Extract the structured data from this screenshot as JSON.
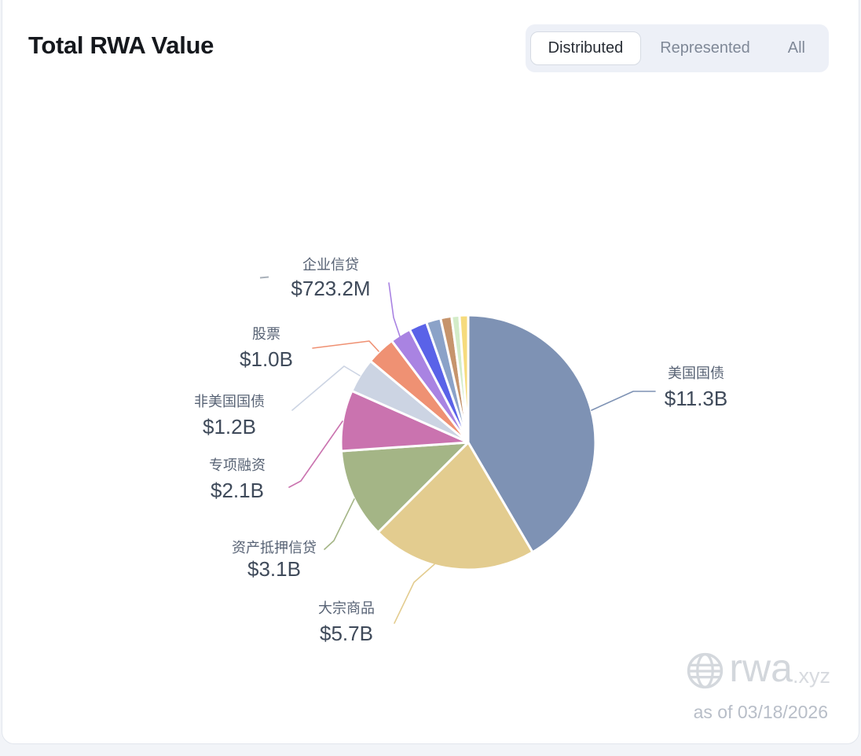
{
  "header": {
    "title": "Total RWA Value"
  },
  "tabs": {
    "items": [
      {
        "label": "Distributed",
        "active": true
      },
      {
        "label": "Represented",
        "active": false
      },
      {
        "label": "All",
        "active": false
      }
    ]
  },
  "chart_data": {
    "type": "pie",
    "title": "Total RWA Value",
    "legend_position": "none",
    "start_angle": "12-o-clock",
    "direction": "clockwise",
    "unit": "USD",
    "slices": [
      {
        "label": "美国国债",
        "value_text": "$11.3B",
        "value_billions": 11.3,
        "color": "#7e92b4"
      },
      {
        "label": "大宗商品",
        "value_text": "$5.7B",
        "value_billions": 5.7,
        "color": "#e3cc8f"
      },
      {
        "label": "资产抵押信贷",
        "value_text": "$3.1B",
        "value_billions": 3.1,
        "color": "#a4b586"
      },
      {
        "label": "专项融资",
        "value_text": "$2.1B",
        "value_billions": 2.1,
        "color": "#ca73af"
      },
      {
        "label": "非美国国债",
        "value_text": "$1.2B",
        "value_billions": 1.2,
        "color": "#ccd4e3"
      },
      {
        "label": "股票",
        "value_text": "$1.0B",
        "value_billions": 1.0,
        "color": "#ef9173"
      },
      {
        "label": "企业信贷",
        "value_text": "$723.2M",
        "value_billions": 0.7232,
        "color": "#a983e2"
      },
      {
        "label": "",
        "value_text": "",
        "value_billions": 0.62,
        "color": "#5a62e8"
      },
      {
        "label": "",
        "value_text": "",
        "value_billions": 0.5,
        "color": "#8ba2c8"
      },
      {
        "label": "",
        "value_text": "",
        "value_billions": 0.38,
        "color": "#c6946c"
      },
      {
        "label": "",
        "value_text": "",
        "value_billions": 0.27,
        "color": "#d3ecc8"
      },
      {
        "label": "",
        "value_text": "",
        "value_billions": 0.3,
        "color": "#f6db7d"
      }
    ]
  },
  "watermark": {
    "icon": "globe-icon",
    "brand": "rwa",
    "brand_suffix": ".xyz",
    "as_of": "as of 03/18/2026"
  }
}
